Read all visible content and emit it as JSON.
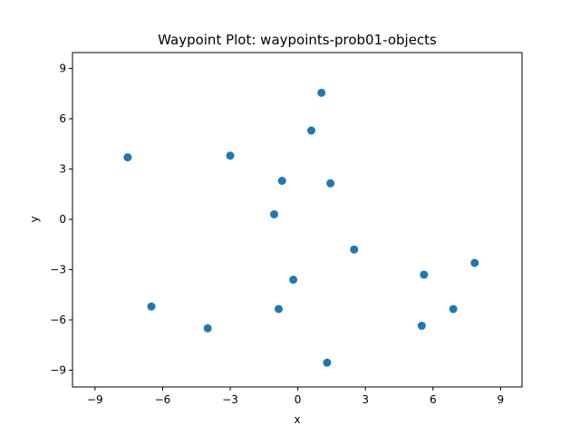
{
  "chart_data": {
    "type": "scatter",
    "title": "Waypoint Plot: waypoints-prob01-objects",
    "xlabel": "x",
    "ylabel": "y",
    "xlim": [
      -10,
      9.95
    ],
    "ylim": [
      -10,
      9.95
    ],
    "xticks": [
      -9,
      -6,
      -3,
      0,
      3,
      6,
      9
    ],
    "yticks": [
      -9,
      -6,
      -3,
      0,
      3,
      6,
      9
    ],
    "xtick_labels": [
      "−9",
      "−6",
      "−3",
      "0",
      "3",
      "6",
      "9"
    ],
    "ytick_labels": [
      "−9",
      "−6",
      "−3",
      "0",
      "3",
      "6",
      "9"
    ],
    "grid": false,
    "marker_color": "#1f77b4",
    "points": [
      {
        "x": 1.05,
        "y": 7.55
      },
      {
        "x": 0.6,
        "y": 5.3
      },
      {
        "x": -7.55,
        "y": 3.7
      },
      {
        "x": -3.0,
        "y": 3.8
      },
      {
        "x": -0.7,
        "y": 2.3
      },
      {
        "x": 1.45,
        "y": 2.15
      },
      {
        "x": -1.05,
        "y": 0.3
      },
      {
        "x": 2.5,
        "y": -1.8
      },
      {
        "x": 7.85,
        "y": -2.6
      },
      {
        "x": 5.6,
        "y": -3.3
      },
      {
        "x": -0.2,
        "y": -3.6
      },
      {
        "x": -6.5,
        "y": -5.2
      },
      {
        "x": -0.85,
        "y": -5.35
      },
      {
        "x": 6.9,
        "y": -5.35
      },
      {
        "x": -4.0,
        "y": -6.5
      },
      {
        "x": 5.5,
        "y": -6.35
      },
      {
        "x": 1.3,
        "y": -8.55
      }
    ]
  }
}
